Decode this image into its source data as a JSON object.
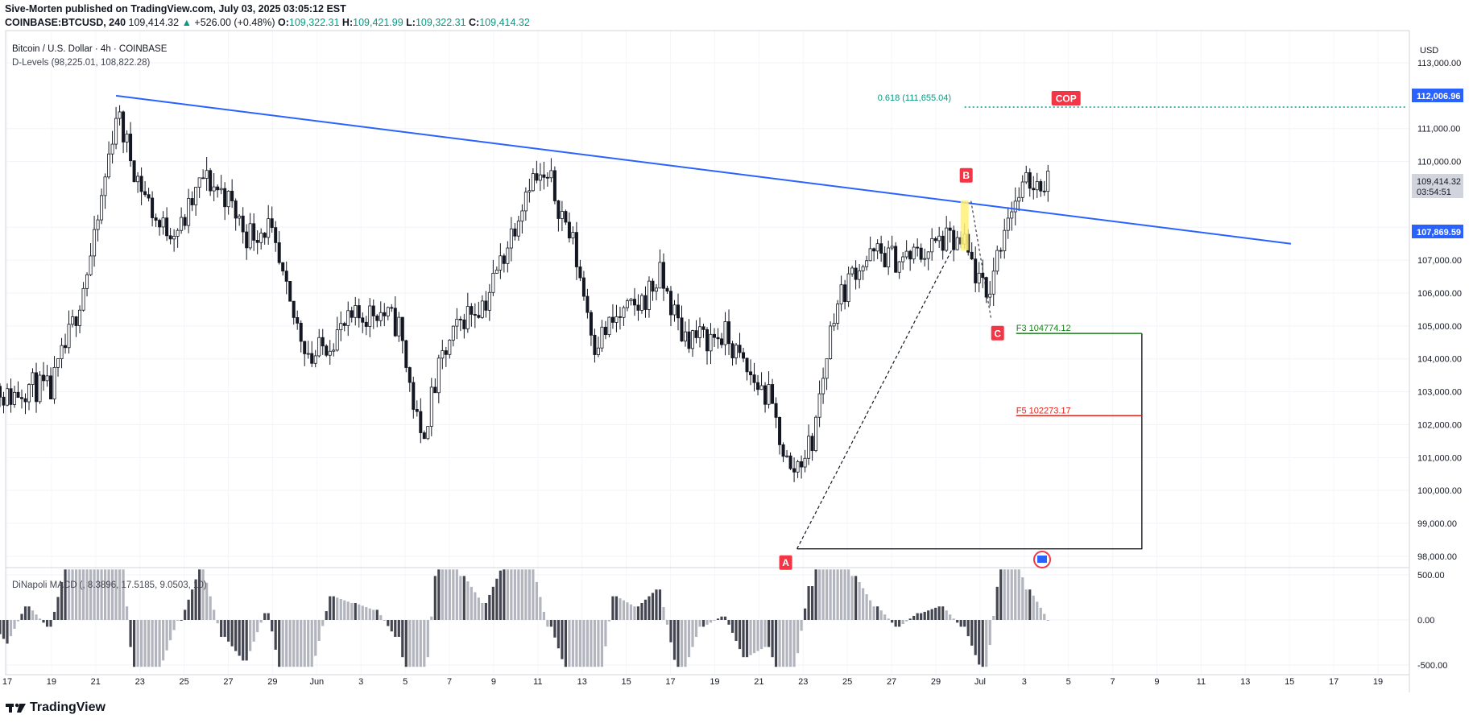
{
  "header": {
    "published_by": "Sive-Morten published on TradingView.com, July 03, 2025 03:05:12 EST",
    "symbol": "COINBASE:BTCUSD, 240",
    "last": "109,414.32",
    "change": "+526.00 (+0.48%)",
    "o_label": "O:",
    "o": "109,322.31",
    "h_label": "H:",
    "h": "109,421.99",
    "l_label": "L:",
    "l": "109,322.31",
    "c_label": "C:",
    "c": "109,414.32"
  },
  "legend": {
    "title": "Bitcoin / U.S. Dollar · 4h · COINBASE",
    "indicator": "D-Levels (98,225.01, 108,822.28)",
    "macd": "DiNapoli MACD (, 8.3896, 17.5185, 9.0503, 10)"
  },
  "price_scale": {
    "currency": "USD",
    "ticks": [
      "113,000.00",
      "112,006.96",
      "111,000.00",
      "110,000.00",
      "109,414.32",
      "108,000.00",
      "107,869.59",
      "107,000.00",
      "106,000.00",
      "105,000.00",
      "104,000.00",
      "103,000.00",
      "102,000.00",
      "101,000.00",
      "100,000.00",
      "99,000.00",
      "98,000.00"
    ],
    "grid_ticks": [
      113000,
      111000,
      110000,
      108000,
      107000,
      106000,
      105000,
      104000,
      103000,
      102000,
      101000,
      100000,
      99000,
      98000
    ],
    "tick_labels": [
      "113,000.00",
      "111,000.00",
      "110,000.00",
      "108,000.00",
      "107,000.00",
      "106,000.00",
      "105,000.00",
      "104,000.00",
      "103,000.00",
      "102,000.00",
      "101,000.00",
      "100,000.00",
      "99,000.00",
      "98,000.00"
    ],
    "badge_blue_1": "112,006.96",
    "badge_grey_price": "109,414.32",
    "badge_grey_timer": "03:54:51",
    "badge_blue_2": "107,869.59",
    "macd_ticks": [
      "500.00",
      "0.00",
      "-500.00"
    ]
  },
  "time_axis": [
    "17",
    "19",
    "21",
    "23",
    "25",
    "27",
    "29",
    "Jun",
    "3",
    "5",
    "7",
    "9",
    "11",
    "13",
    "15",
    "17",
    "19",
    "21",
    "23",
    "25",
    "27",
    "29",
    "Jul",
    "3",
    "5",
    "7",
    "9",
    "11",
    "13",
    "15",
    "17",
    "19"
  ],
  "annotations": {
    "fib": "0.618 (111,655.04)",
    "cop": "COP",
    "point_a": "A",
    "point_b": "B",
    "point_c": "C",
    "f3": "F3 104774.12",
    "f5": "F5 102273.17"
  },
  "colors": {
    "up": "#089981",
    "trendline": "#2962ff",
    "label_red": "#f23645",
    "candle": "#131722",
    "macd_dark": "#434651",
    "macd_light": "#b2b5be",
    "f3": "#1b7d1b",
    "f5": "#e0251b",
    "highlight": "#fff176"
  },
  "footer": {
    "brand": "TradingView"
  },
  "chart_data": {
    "type": "candlestick",
    "title": "Bitcoin / U.S. Dollar · 4h · COINBASE",
    "ylim": [
      97900,
      113200
    ],
    "price_anchors": [
      {
        "date": "May 16",
        "price": 103500
      },
      {
        "date": "May 17",
        "price": 102800
      },
      {
        "date": "May 18",
        "price": 103200
      },
      {
        "date": "May 19",
        "price": 103000
      },
      {
        "date": "May 20",
        "price": 105000
      },
      {
        "date": "May 21",
        "price": 107500
      },
      {
        "date": "May 22",
        "price": 111500
      },
      {
        "date": "May 23",
        "price": 109500
      },
      {
        "date": "May 24",
        "price": 108000
      },
      {
        "date": "May 25",
        "price": 108000
      },
      {
        "date": "May 26",
        "price": 109500
      },
      {
        "date": "May 27",
        "price": 109000
      },
      {
        "date": "May 28",
        "price": 107800
      },
      {
        "date": "May 29",
        "price": 108000
      },
      {
        "date": "May 30",
        "price": 105500
      },
      {
        "date": "May 31",
        "price": 104000
      },
      {
        "date": "Jun 1",
        "price": 104700
      },
      {
        "date": "Jun 2",
        "price": 105200
      },
      {
        "date": "Jun 3",
        "price": 105500
      },
      {
        "date": "Jun 4",
        "price": 105000
      },
      {
        "date": "Jun 5",
        "price": 101500
      },
      {
        "date": "Jun 6",
        "price": 104000
      },
      {
        "date": "Jun 7",
        "price": 105300
      },
      {
        "date": "Jun 8",
        "price": 105800
      },
      {
        "date": "Jun 9",
        "price": 107500
      },
      {
        "date": "Jun 10",
        "price": 109500
      },
      {
        "date": "Jun 11",
        "price": 109300
      },
      {
        "date": "Jun 12",
        "price": 107500
      },
      {
        "date": "Jun 13",
        "price": 104500
      },
      {
        "date": "Jun 14",
        "price": 105200
      },
      {
        "date": "Jun 15",
        "price": 105600
      },
      {
        "date": "Jun 16",
        "price": 106500
      },
      {
        "date": "Jun 17",
        "price": 104800
      },
      {
        "date": "Jun 18",
        "price": 104600
      },
      {
        "date": "Jun 19",
        "price": 104700
      },
      {
        "date": "Jun 20",
        "price": 103600
      },
      {
        "date": "Jun 21",
        "price": 102800
      },
      {
        "date": "Jun 22",
        "price": 100500
      },
      {
        "date": "Jun 23",
        "price": 101500
      },
      {
        "date": "Jun 24",
        "price": 105500
      },
      {
        "date": "Jun 25",
        "price": 106800
      },
      {
        "date": "Jun 26",
        "price": 107200
      },
      {
        "date": "Jun 27",
        "price": 107000
      },
      {
        "date": "Jun 28",
        "price": 107200
      },
      {
        "date": "Jun 29",
        "price": 107600
      },
      {
        "date": "Jun 30",
        "price": 107400
      },
      {
        "date": "Jul 1",
        "price": 105800
      },
      {
        "date": "Jul 2",
        "price": 108500
      },
      {
        "date": "Jul 3",
        "price": 109400
      }
    ],
    "trendline": [
      {
        "date": "May 22",
        "price": 112000
      },
      {
        "date": "Jul 15",
        "price": 107500
      }
    ],
    "fib_level": {
      "value": 111655.04,
      "from": "Jun 30",
      "to": "Jul 18"
    },
    "abc": [
      {
        "label": "A",
        "date": "Jun 22",
        "price": 98225
      },
      {
        "label": "B",
        "date": "Jun 30",
        "price": 108822
      },
      {
        "label": "C",
        "date": "Jul 1",
        "price": 105100
      }
    ],
    "targets": [
      {
        "label": "F3",
        "value": 104774.12
      },
      {
        "label": "F5",
        "value": 102273.17
      }
    ],
    "d_levels": [
      98225.01,
      108822.28
    ],
    "macd": {
      "ylim": [
        -550,
        600
      ],
      "note": "DiNapoli MACD histogram"
    }
  }
}
